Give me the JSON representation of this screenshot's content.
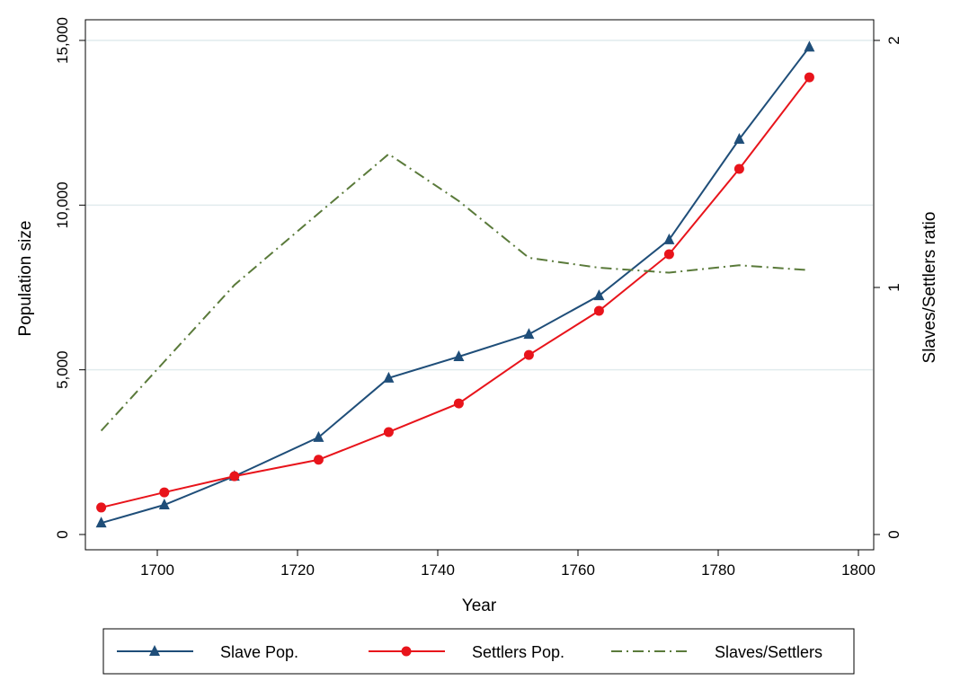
{
  "chart_data": {
    "type": "line",
    "title": "",
    "xlabel": "Year",
    "ylabel": "Population size",
    "y2label": "Slaves/Settlers ratio",
    "xlim": [
      1690,
      1802
    ],
    "ylim": [
      0,
      15000
    ],
    "y2lim": [
      0,
      2
    ],
    "xticks": [
      1700,
      1720,
      1740,
      1760,
      1780,
      1800
    ],
    "yticks": [
      0,
      5000,
      10000,
      15000
    ],
    "ytick_labels": [
      "0",
      "5,000",
      "10,000",
      "15,000"
    ],
    "y2ticks": [
      0,
      1,
      2
    ],
    "y2tick_labels": [
      "0",
      "1",
      "2"
    ],
    "grid": true,
    "legend_position": "bottom",
    "x": [
      1692,
      1701,
      1711,
      1723,
      1733,
      1743,
      1753,
      1763,
      1773,
      1783,
      1793
    ],
    "series": [
      {
        "name": "Slave Pop.",
        "axis": "left",
        "color": "#1f4e79",
        "marker": "triangle",
        "values": [
          350,
          900,
          1770,
          2950,
          4750,
          5400,
          6080,
          7250,
          8950,
          12000,
          14800
        ]
      },
      {
        "name": "Settlers Pop.",
        "axis": "left",
        "color": "#e8141b",
        "marker": "circle",
        "values": [
          820,
          1280,
          1770,
          2270,
          3110,
          3980,
          5450,
          6790,
          8510,
          11100,
          13880
        ]
      },
      {
        "name": "Slaves/Settlers",
        "axis": "right",
        "color": "#5a7a3a",
        "marker": "none",
        "dash": "dashdot",
        "values": [
          0.42,
          0.7,
          1.01,
          1.3,
          1.54,
          1.35,
          1.12,
          1.08,
          1.06,
          1.09,
          1.07
        ]
      }
    ]
  }
}
